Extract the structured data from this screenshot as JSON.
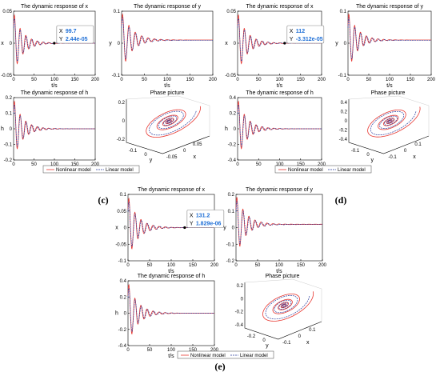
{
  "chart_data": [
    {
      "panel_label": "(c)",
      "legend": [
        "Nonlinear model",
        "Linear model"
      ],
      "subplots": [
        {
          "type": "line",
          "title": "The dynamic response of x",
          "xlabel": "t/s",
          "ylabel": "x",
          "xlim": [
            0,
            200
          ],
          "ylim": [
            -0.05,
            0.05
          ],
          "xticks": [
            "0",
            "50",
            "100",
            "150",
            "200"
          ],
          "yticks": [
            "-0.05",
            "0",
            "0.05"
          ],
          "datatip": {
            "x_label": "X",
            "x_value": "99.7",
            "y_label": "Y",
            "y_value": "2.44e-05"
          }
        },
        {
          "type": "line",
          "title": "The dynamic response of y",
          "xlabel": "t/s",
          "ylabel": "y",
          "xlim": [
            0,
            200
          ],
          "ylim": [
            -0.1,
            0.1
          ],
          "xticks": [
            "0",
            "50",
            "100",
            "150",
            "200"
          ],
          "yticks": [
            "-0.1",
            "0",
            "0.1"
          ]
        },
        {
          "type": "line",
          "title": "The dynamic response of h",
          "xlabel": "t/s",
          "ylabel": "h",
          "xlim": [
            0,
            200
          ],
          "ylim": [
            -0.2,
            0.2
          ],
          "xticks": [
            "0",
            "50",
            "100",
            "150",
            "200"
          ],
          "yticks": [
            "-0.2",
            "-0.1",
            "0",
            "0.1",
            "0.2"
          ]
        },
        {
          "type": "3d-line",
          "title": "Phase picture",
          "xlabel": "x",
          "ylabel": "y",
          "zlabel": "",
          "ticks_z": [
            "0.2",
            "0",
            "-0.2"
          ],
          "ticks_y": [
            "-0.1",
            "0"
          ],
          "ticks_x": [
            "-0.05",
            "0",
            "0.05"
          ]
        }
      ]
    },
    {
      "panel_label": "(d)",
      "legend": [
        "Nonlinear model",
        "Linear model"
      ],
      "subplots": [
        {
          "type": "line",
          "title": "The dynamic response of x",
          "xlabel": "t/s",
          "ylabel": "x",
          "xlim": [
            0,
            200
          ],
          "ylim": [
            -0.05,
            0.05
          ],
          "xticks": [
            "0",
            "50",
            "100",
            "150",
            "200"
          ],
          "yticks": [
            "-0.05",
            "0",
            "0.05"
          ],
          "datatip": {
            "x_label": "X",
            "x_value": "112",
            "y_label": "Y",
            "y_value": "-3.312e-05"
          }
        },
        {
          "type": "line",
          "title": "The dynamic response of y",
          "xlabel": "t/s",
          "ylabel": "y",
          "xlim": [
            0,
            200
          ],
          "ylim": [
            -0.1,
            0.1
          ],
          "xticks": [
            "0",
            "50",
            "100",
            "150",
            "200"
          ],
          "yticks": [
            "-0.1",
            "0",
            "0.1"
          ]
        },
        {
          "type": "line",
          "title": "The dynamic response of h",
          "xlabel": "t/s",
          "ylabel": "h",
          "xlim": [
            0,
            200
          ],
          "ylim": [
            -0.4,
            0.4
          ],
          "xticks": [
            "0",
            "50",
            "100",
            "150",
            "200"
          ],
          "yticks": [
            "-0.4",
            "-0.2",
            "0",
            "0.2",
            "0.4"
          ]
        },
        {
          "type": "3d-line",
          "title": "Phase picture",
          "xlabel": "x",
          "ylabel": "y",
          "zlabel": "",
          "ticks_z": [
            "0.4",
            "0.2",
            "0",
            "-0.2",
            "-0.4"
          ],
          "ticks_y": [
            "-0.1",
            "0"
          ],
          "ticks_x": [
            "-0.1",
            "0",
            "0.1"
          ]
        }
      ]
    },
    {
      "panel_label": "(e)",
      "legend": [
        "Nonlinear model",
        "Linear model"
      ],
      "subplots": [
        {
          "type": "line",
          "title": "The dynamic response of x",
          "xlabel": "t/s",
          "ylabel": "x",
          "xlim": [
            0,
            200
          ],
          "ylim": [
            -0.1,
            0.1
          ],
          "xticks": [
            "0",
            "50",
            "100",
            "150",
            "200"
          ],
          "yticks": [
            "-0.1",
            "-0.05",
            "0",
            "0.05",
            "0.1"
          ],
          "datatip": {
            "x_label": "X",
            "x_value": "131.2",
            "y_label": "Y",
            "y_value": "1.829e-06"
          }
        },
        {
          "type": "line",
          "title": "The dynamic response of y",
          "xlabel": "t/s",
          "ylabel": "y",
          "xlim": [
            0,
            200
          ],
          "ylim": [
            -0.2,
            0.2
          ],
          "xticks": [
            "0",
            "50",
            "100",
            "150",
            "200"
          ],
          "yticks": [
            "-0.2",
            "-0.1",
            "0",
            "0.1",
            "0.2"
          ]
        },
        {
          "type": "line",
          "title": "The dynamic response of h",
          "xlabel": "t/s",
          "ylabel": "h",
          "xlim": [
            0,
            200
          ],
          "ylim": [
            -0.4,
            0.4
          ],
          "xticks": [
            "0",
            "50",
            "100",
            "150",
            "200"
          ],
          "yticks": [
            "-0.4",
            "-0.2",
            "0",
            "0.2",
            "0.4"
          ]
        },
        {
          "type": "3d-line",
          "title": "Phase picture",
          "xlabel": "x",
          "ylabel": "y",
          "zlabel": "",
          "ticks_z": [
            "0.2",
            "0",
            "-0.2",
            "-0.4"
          ],
          "ticks_y": [
            "-0.2",
            "0"
          ],
          "ticks_x": [
            "-0.1",
            "0",
            "0.1"
          ]
        }
      ]
    }
  ],
  "colors": {
    "nonlinear": "#e8362f",
    "linear": "#2b3d9e",
    "datatip_value": "#1f6fd6"
  }
}
